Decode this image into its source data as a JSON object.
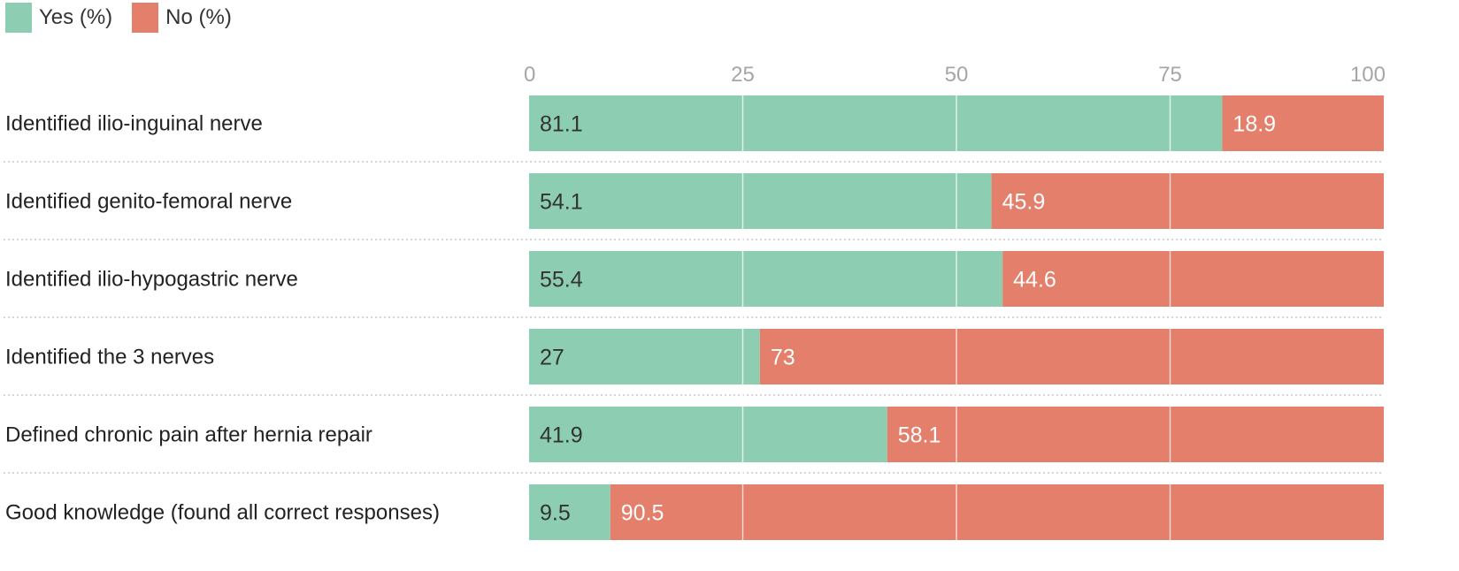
{
  "chart_data": {
    "type": "bar",
    "orientation": "horizontal",
    "stacked": true,
    "title": "",
    "xlabel": "",
    "ylabel": "",
    "xlim": [
      0,
      100
    ],
    "ticks": [
      0,
      25,
      50,
      75,
      100
    ],
    "grid": true,
    "legend_position": "top-left",
    "categories": [
      "Identified ilio-inguinal nerve",
      "Identified genito-femoral nerve",
      "Identified ilio-hypogastric nerve",
      "Identified the 3 nerves",
      "Defined chronic pain after hernia repair",
      "Good knowledge (found all correct responses)"
    ],
    "series": [
      {
        "name": "Yes (%)",
        "color": "#8dceb3",
        "label_color": "#333333",
        "values": [
          81.1,
          54.1,
          55.4,
          27,
          41.9,
          9.5
        ]
      },
      {
        "name": "No (%)",
        "color": "#e37f6a",
        "label_color": "#ffffff",
        "values": [
          18.9,
          45.9,
          44.6,
          73,
          58.1,
          90.5
        ]
      }
    ]
  }
}
